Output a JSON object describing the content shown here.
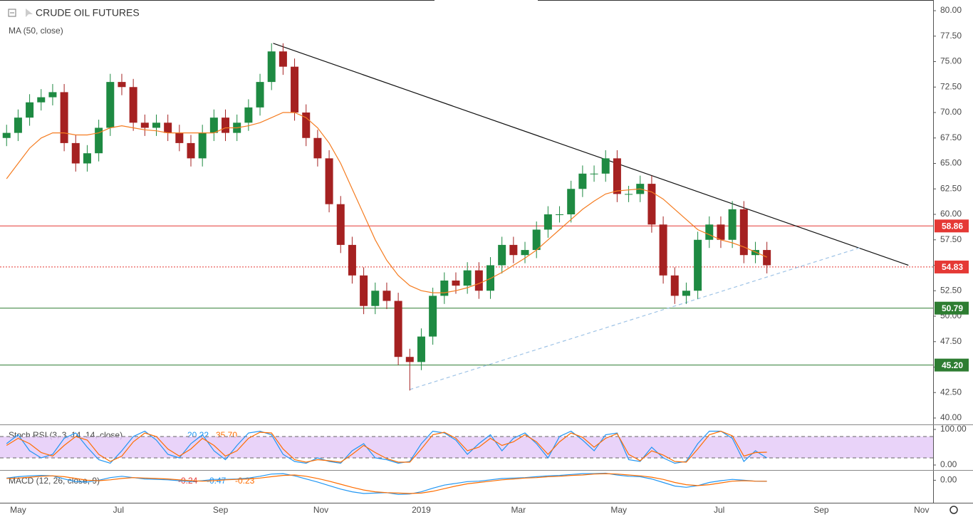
{
  "chart_data": [
    {
      "type": "candlestick",
      "title": "CRUDE OIL FUTURES",
      "x": [
        -7,
        0,
        7,
        14,
        21,
        28,
        35,
        42,
        49,
        56,
        63,
        70,
        77,
        84,
        91,
        98,
        105,
        112,
        119,
        126,
        133,
        140,
        147,
        154,
        161,
        168,
        175,
        182,
        189,
        196,
        203,
        210,
        217,
        224,
        231,
        238,
        245,
        252,
        259,
        266,
        273,
        280,
        287,
        294,
        301,
        308,
        315,
        322,
        329,
        336,
        343,
        350,
        357,
        364,
        371,
        378,
        385,
        392,
        399,
        406,
        413,
        420,
        427,
        434,
        441,
        448,
        455
      ],
      "open": [
        67.5,
        68,
        69.5,
        71,
        71.5,
        72,
        67,
        65,
        66,
        68.5,
        73,
        72.5,
        69,
        68.5,
        69,
        68,
        67,
        65.5,
        68,
        69.5,
        68,
        69,
        70.5,
        73,
        76,
        74.5,
        70,
        67.5,
        65.5,
        61,
        57,
        54,
        51,
        52.5,
        51.5,
        46,
        45.5,
        48,
        52,
        53.5,
        53,
        54.5,
        52.5,
        55,
        57,
        56,
        56.5,
        58.5,
        60,
        60,
        62.5,
        64,
        64,
        65.5,
        62,
        62,
        63,
        59,
        54,
        52,
        52.5,
        57.5,
        59,
        57.5,
        60.5,
        56,
        56.5
      ],
      "high": [
        68.8,
        70.3,
        71.8,
        72.3,
        72.8,
        72.8,
        67.8,
        66.8,
        69.3,
        73.8,
        73.8,
        73.3,
        69.8,
        69.8,
        69.8,
        68.8,
        67.8,
        68.8,
        70.3,
        70.3,
        69.8,
        71.3,
        73.8,
        76.8,
        76.8,
        75.3,
        70.8,
        68.3,
        66.3,
        61.8,
        57.8,
        54.8,
        53.3,
        53.3,
        52.3,
        46.8,
        48.8,
        52.8,
        54.3,
        54.3,
        55.3,
        55.3,
        55.8,
        57.8,
        57.8,
        57.3,
        59.3,
        60.8,
        60.8,
        63.3,
        64.8,
        64.8,
        66.3,
        66.3,
        62.8,
        63.8,
        63.8,
        59.8,
        54.8,
        53.3,
        58.3,
        59.8,
        59.8,
        61.3,
        61.3,
        57.3,
        57.3
      ],
      "low": [
        66.7,
        67.2,
        68.7,
        70.2,
        70.7,
        66.2,
        64.2,
        64.2,
        65.2,
        67.7,
        71.7,
        68.2,
        67.7,
        67.7,
        67.2,
        66.2,
        64.7,
        64.7,
        67.2,
        67.2,
        67.2,
        68.2,
        69.7,
        72.2,
        73.7,
        69.2,
        66.7,
        64.7,
        60.2,
        56.2,
        53.2,
        50.2,
        50.2,
        50.7,
        45.2,
        42.7,
        44.7,
        47.2,
        51.2,
        52.2,
        52.2,
        51.7,
        51.7,
        54.2,
        55.2,
        55.2,
        55.7,
        57.7,
        59.2,
        59.2,
        61.7,
        63.2,
        63.2,
        61.2,
        61.2,
        61.2,
        58.2,
        53.2,
        51.2,
        51.2,
        51.7,
        56.7,
        56.7,
        56.7,
        55.2,
        55.2,
        54.2
      ],
      "close": [
        68,
        69.5,
        71,
        71.5,
        72,
        67,
        65,
        66,
        68.5,
        73,
        72.5,
        69,
        68.5,
        69,
        68,
        67,
        65.5,
        68,
        69.5,
        68,
        69,
        70.5,
        73,
        76,
        74.5,
        70,
        67.5,
        65.5,
        61,
        57,
        54,
        51,
        52.5,
        51.5,
        46,
        45.5,
        48,
        52,
        53.5,
        53,
        54.5,
        52.5,
        55,
        57,
        56,
        56.5,
        58.5,
        60,
        60,
        62.5,
        64,
        64,
        65.5,
        62,
        62,
        63,
        59,
        54,
        52,
        52.5,
        57.5,
        59,
        57.5,
        60.5,
        56,
        56.5,
        55
      ],
      "up_color": "#1e8a42",
      "down_color": "#a52121",
      "series": [
        {
          "name": "MA (50, close)",
          "color": "#f57c20",
          "values": [
            63.5,
            65,
            66.5,
            67.5,
            68,
            68,
            67.8,
            67.8,
            68,
            68.5,
            68.7,
            68.5,
            68.3,
            68.2,
            68,
            68,
            68,
            68,
            68,
            68.5,
            68.5,
            68.7,
            69,
            69.5,
            70,
            70,
            69.5,
            68.5,
            67,
            65,
            62.5,
            60,
            57.5,
            55.5,
            54,
            53,
            52.5,
            52.3,
            52.3,
            52.5,
            52.8,
            53.2,
            53.7,
            54.3,
            55,
            55.7,
            56.5,
            57.5,
            58.5,
            59.5,
            60.5,
            61.3,
            62,
            62.3,
            62.4,
            62.5,
            62.2,
            61.5,
            60.5,
            59.5,
            58.5,
            58,
            57.5,
            57.2,
            56.8,
            56.3,
            55.8
          ]
        }
      ],
      "levels": [
        {
          "value": 58.86,
          "label": "58.86",
          "color": "#e53935",
          "dashed": false
        },
        {
          "value": 54.83,
          "label": "54.83",
          "color": "#e53935",
          "dashed": true
        },
        {
          "value": 50.79,
          "label": "50.79",
          "color": "#2e7d32",
          "dashed": false
        },
        {
          "value": 45.2,
          "label": "45.20",
          "color": "#2e7d32",
          "dashed": false
        }
      ],
      "trendlines": [
        {
          "x": [
            155,
            541
          ],
          "y": [
            76.8,
            55.0
          ],
          "color": "#111111",
          "dashed": false
        },
        {
          "x": [
            238,
            513
          ],
          "y": [
            42.8,
            56.8
          ],
          "color": "#9ec3e6",
          "dashed": true
        }
      ],
      "xlim": [
        -11,
        556
      ],
      "xticks": [
        {
          "value": 0,
          "label": "May"
        },
        {
          "value": 61,
          "label": "Jul"
        },
        {
          "value": 123,
          "label": "Sep"
        },
        {
          "value": 184,
          "label": "Nov"
        },
        {
          "value": 245,
          "label": "2019"
        },
        {
          "value": 304,
          "label": "Mar"
        },
        {
          "value": 365,
          "label": "May"
        },
        {
          "value": 426,
          "label": "Jul"
        },
        {
          "value": 488,
          "label": "Sep"
        },
        {
          "value": 549,
          "label": "Nov"
        }
      ],
      "ylim": [
        39.44,
        81.05
      ],
      "yticks": [
        {
          "value": 40,
          "label": "40.00"
        },
        {
          "value": 42.5,
          "label": "42.50"
        },
        {
          "value": 45,
          "label": "45.00"
        },
        {
          "value": 47.5,
          "label": "47.50"
        },
        {
          "value": 50,
          "label": "50.00"
        },
        {
          "value": 52.5,
          "label": "52.50"
        },
        {
          "value": 55,
          "label": "55.00"
        },
        {
          "value": 57.5,
          "label": "57.50"
        },
        {
          "value": 60,
          "label": "60.00"
        },
        {
          "value": 62.5,
          "label": "62.50"
        },
        {
          "value": 65,
          "label": "65.00"
        },
        {
          "value": 67.5,
          "label": "67.50"
        },
        {
          "value": 70,
          "label": "70.00"
        },
        {
          "value": 72.5,
          "label": "72.50"
        },
        {
          "value": 75,
          "label": "75.00"
        },
        {
          "value": 77.5,
          "label": "77.50"
        },
        {
          "value": 80,
          "label": "80.00"
        }
      ]
    },
    {
      "type": "line",
      "title": "Stoch RSI (3, 3, 14, 14, close)",
      "series": [
        {
          "color": "#2196f3",
          "legend_value": "20.22",
          "values": [
            60,
            85,
            40,
            20,
            30,
            75,
            90,
            50,
            15,
            5,
            40,
            80,
            95,
            70,
            30,
            20,
            60,
            85,
            40,
            15,
            55,
            90,
            95,
            85,
            30,
            10,
            5,
            20,
            10,
            5,
            40,
            60,
            20,
            15,
            5,
            10,
            60,
            95,
            90,
            70,
            30,
            60,
            85,
            40,
            75,
            90,
            60,
            20,
            80,
            95,
            70,
            40,
            85,
            90,
            15,
            10,
            50,
            20,
            5,
            10,
            60,
            95,
            95,
            75,
            10,
            40,
            20
          ]
        },
        {
          "color": "#ff6d00",
          "legend_value": "35.70",
          "values": [
            55,
            75,
            60,
            35,
            25,
            55,
            80,
            70,
            30,
            10,
            25,
            65,
            90,
            80,
            45,
            25,
            45,
            75,
            55,
            25,
            40,
            75,
            92,
            90,
            45,
            15,
            8,
            15,
            12,
            8,
            30,
            55,
            35,
            18,
            8,
            8,
            45,
            85,
            92,
            75,
            40,
            50,
            75,
            55,
            65,
            85,
            65,
            30,
            65,
            90,
            78,
            50,
            75,
            88,
            30,
            12,
            40,
            28,
            10,
            8,
            45,
            85,
            95,
            82,
            25,
            35,
            36
          ]
        }
      ],
      "band": [
        20,
        80
      ],
      "band_color": "#e3c8f7",
      "ylim": [
        -14,
        110
      ],
      "yticks": [
        {
          "value": 0,
          "label": "0.00"
        },
        {
          "value": 100,
          "label": "100.00"
        }
      ]
    },
    {
      "type": "line",
      "title": "MACD (12, 26, close, 9)",
      "legend_values": [
        "-0.24",
        "-0.47",
        "-0.23"
      ],
      "series": [
        {
          "color": "#2196f3",
          "values": [
            0.5,
            0.8,
            1.0,
            1.1,
            1.0,
            0.3,
            -0.3,
            -0.4,
            0,
            0.6,
            0.9,
            0.6,
            0.3,
            0.2,
            0.1,
            -0.1,
            -0.3,
            -0.1,
            0.2,
            0.2,
            0.3,
            0.5,
            0.9,
            1.4,
            1.5,
            1.0,
            0.3,
            -0.4,
            -1.2,
            -2.0,
            -2.6,
            -3.0,
            -2.9,
            -2.8,
            -3.2,
            -3.1,
            -2.6,
            -1.8,
            -1.1,
            -0.7,
            -0.3,
            -0.2,
            0.1,
            0.4,
            0.5,
            0.6,
            0.8,
            1.0,
            1.1,
            1.3,
            1.5,
            1.5,
            1.6,
            1.2,
            0.9,
            0.8,
            0.3,
            -0.5,
            -1.3,
            -1.6,
            -1.2,
            -0.5,
            -0.1,
            0.2,
            0.0,
            -0.2,
            -0.24
          ]
        },
        {
          "color": "#ff6d00",
          "values": [
            0.4,
            0.5,
            0.7,
            0.9,
            1.0,
            0.8,
            0.4,
            0.0,
            -0.1,
            0.1,
            0.4,
            0.6,
            0.5,
            0.4,
            0.3,
            0.1,
            -0.1,
            -0.2,
            -0.1,
            0.1,
            0.2,
            0.3,
            0.5,
            0.8,
            1.1,
            1.2,
            0.9,
            0.4,
            -0.2,
            -0.9,
            -1.6,
            -2.2,
            -2.6,
            -2.8,
            -2.9,
            -3.0,
            -2.9,
            -2.5,
            -1.9,
            -1.3,
            -0.8,
            -0.5,
            -0.2,
            0.1,
            0.3,
            0.5,
            0.6,
            0.8,
            0.9,
            1.1,
            1.2,
            1.4,
            1.5,
            1.4,
            1.2,
            1.0,
            0.7,
            0.2,
            -0.5,
            -1.0,
            -1.2,
            -1.0,
            -0.6,
            -0.2,
            -0.1,
            -0.2,
            -0.23
          ]
        }
      ],
      "ylim": [
        -3.8,
        2
      ],
      "yticks": [
        {
          "value": 0,
          "label": "0.00"
        }
      ]
    }
  ]
}
